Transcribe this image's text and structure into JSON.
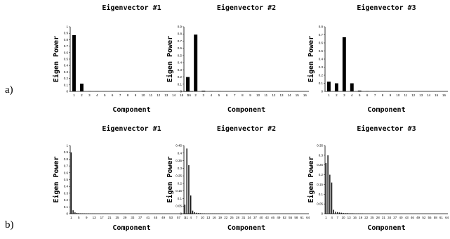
{
  "row_labels": [
    "a)",
    "b)"
  ],
  "chart_data": [
    {
      "type": "bar",
      "row": 0,
      "col": 0,
      "title": "Eigenvector #1",
      "xlabel": "Component",
      "ylabel": "Eigen Power",
      "ylim": [
        0,
        1
      ],
      "yticks": [
        "0",
        "0.1",
        "0.2",
        "0.3",
        "0.4",
        "0.5",
        "0.6",
        "0.7",
        "0.8",
        "0.9",
        "1"
      ],
      "n": 16,
      "xtick_step": 1,
      "values": [
        0.87,
        0.12,
        0.003,
        0.002,
        0.001,
        0.001,
        0.001,
        0,
        0,
        0,
        0,
        0,
        0,
        0,
        0,
        0
      ]
    },
    {
      "type": "bar",
      "row": 0,
      "col": 1,
      "title": "Eigenvector #2",
      "xlabel": "Component",
      "ylabel": "Eigen Power",
      "ylim": [
        0,
        0.9
      ],
      "yticks": [
        "0",
        "0.1",
        "0.2",
        "0.3",
        "0.4",
        "0.5",
        "0.6",
        "0.7",
        "0.8",
        "0.9"
      ],
      "n": 16,
      "xtick_step": 1,
      "values": [
        0.2,
        0.79,
        0.01,
        0.003,
        0.002,
        0.001,
        0.001,
        0,
        0,
        0,
        0,
        0,
        0,
        0,
        0,
        0
      ]
    },
    {
      "type": "bar",
      "row": 0,
      "col": 2,
      "title": "Eigenvector #3",
      "xlabel": "Component",
      "ylabel": "Eigen Power",
      "ylim": [
        0,
        0.8
      ],
      "yticks": [
        "0",
        "0.1",
        "0.2",
        "0.3",
        "0.4",
        "0.5",
        "0.6",
        "0.7",
        "0.8"
      ],
      "n": 16,
      "xtick_step": 1,
      "values": [
        0.12,
        0.1,
        0.67,
        0.1,
        0.01,
        0.003,
        0.002,
        0.001,
        0,
        0,
        0,
        0,
        0,
        0,
        0,
        0
      ]
    },
    {
      "type": "bar",
      "row": 1,
      "col": 0,
      "title": "Eigenvector #1",
      "xlabel": "Component",
      "ylabel": "Eigen Power",
      "ylim": [
        0,
        1
      ],
      "yticks": [
        "0",
        "0.1",
        "0.2",
        "0.3",
        "0.4",
        "0.5",
        "0.6",
        "0.7",
        "0.8",
        "0.9",
        "1"
      ],
      "n": 64,
      "xtick_step": 4,
      "values": [
        0.9,
        0.05,
        0.02,
        0.01,
        0.008,
        0.006,
        0.005,
        0.004,
        0.003,
        0.003,
        0.002,
        0.002,
        0.002,
        0.001,
        0.001,
        0.001,
        0.001,
        0.001,
        0.001,
        0.001,
        0,
        0,
        0,
        0,
        0,
        0,
        0,
        0,
        0,
        0,
        0,
        0,
        0,
        0,
        0,
        0,
        0,
        0,
        0,
        0,
        0,
        0,
        0,
        0,
        0,
        0,
        0,
        0,
        0,
        0,
        0,
        0,
        0,
        0,
        0,
        0,
        0,
        0,
        0,
        0,
        0,
        0,
        0,
        0
      ]
    },
    {
      "type": "bar",
      "row": 1,
      "col": 1,
      "title": "Eigenvector #2",
      "xlabel": "Component",
      "ylabel": "Eigen Power",
      "ylim": [
        0,
        0.45
      ],
      "yticks": [
        "0",
        "0.05",
        "0.1",
        "0.15",
        "0.2",
        "0.25",
        "0.3",
        "0.35",
        "0.4",
        "0.45"
      ],
      "n": 64,
      "xtick_step": 3,
      "values": [
        0.06,
        0.43,
        0.32,
        0.12,
        0.02,
        0.01,
        0.006,
        0.004,
        0.003,
        0.002,
        0.002,
        0.001,
        0.001,
        0.001,
        0.001,
        0.001,
        0.001,
        0.001,
        0.001,
        0.001,
        0,
        0,
        0,
        0,
        0,
        0,
        0,
        0,
        0,
        0,
        0,
        0,
        0,
        0,
        0,
        0,
        0,
        0,
        0,
        0,
        0,
        0,
        0,
        0,
        0,
        0,
        0,
        0,
        0,
        0,
        0,
        0,
        0,
        0,
        0,
        0,
        0,
        0,
        0,
        0,
        0,
        0,
        0,
        0
      ]
    },
    {
      "type": "bar",
      "row": 1,
      "col": 2,
      "title": "Eigenvector #3",
      "xlabel": "Component",
      "ylabel": "Eigen Power",
      "ylim": [
        0,
        0.35
      ],
      "yticks": [
        "0",
        "0.05",
        "0.1",
        "0.15",
        "0.2",
        "0.25",
        "0.3",
        "0.35"
      ],
      "n": 64,
      "xtick_step": 3,
      "values": [
        0.26,
        0.3,
        0.2,
        0.16,
        0.02,
        0.01,
        0.008,
        0.006,
        0.005,
        0.004,
        0.003,
        0.003,
        0.002,
        0.002,
        0.002,
        0.001,
        0.001,
        0.001,
        0.001,
        0.001,
        0,
        0,
        0,
        0,
        0,
        0,
        0,
        0,
        0,
        0,
        0,
        0,
        0,
        0,
        0,
        0,
        0,
        0,
        0,
        0,
        0,
        0,
        0,
        0,
        0,
        0,
        0,
        0,
        0,
        0,
        0,
        0,
        0,
        0,
        0,
        0,
        0,
        0,
        0,
        0,
        0,
        0,
        0,
        0
      ]
    }
  ]
}
